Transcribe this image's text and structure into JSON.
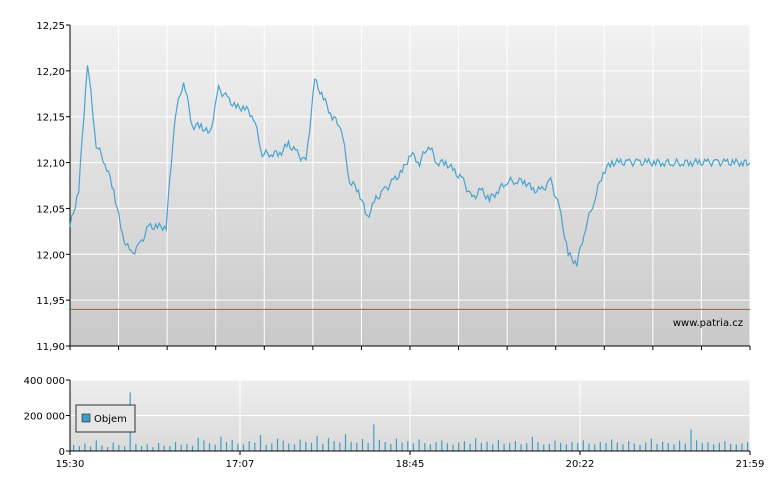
{
  "colors": {
    "price_line": "#4aa3cf",
    "volume_bars": "#3d9dc9",
    "reference_line": "#e03a3a",
    "plot_bg_top": "#f2f2f2",
    "plot_bg_bottom": "#c9c9c9",
    "grid": "#ffffff"
  },
  "watermark": "www.patria.cz",
  "chart_data": [
    {
      "type": "line",
      "name_hidden": true,
      "ylim": [
        11.9,
        12.25
      ],
      "y_ticks": [
        "12,25",
        "12,20",
        "12,15",
        "12,10",
        "12,05",
        "12,00",
        "11,95",
        "11,90"
      ],
      "y_tick_values": [
        12.25,
        12.2,
        12.15,
        12.1,
        12.05,
        12.0,
        11.95,
        11.9
      ],
      "x_range": [
        "15:30",
        "21:59"
      ],
      "reference_line": 11.94,
      "grid": true,
      "series": [
        {
          "x": [
            "15:30",
            "15:35",
            "15:40",
            "15:45",
            "15:50",
            "15:55",
            "16:00",
            "16:05",
            "16:10",
            "16:15",
            "16:20",
            "16:25",
            "16:30",
            "16:35",
            "16:40",
            "16:45",
            "16:50",
            "16:55",
            "17:00",
            "17:05",
            "17:10",
            "17:15",
            "17:20",
            "17:25",
            "17:30",
            "17:35",
            "17:40",
            "17:45",
            "17:50",
            "17:55",
            "18:00",
            "18:05",
            "18:10",
            "18:15",
            "18:20",
            "18:25",
            "18:30",
            "18:35",
            "18:40",
            "18:45",
            "18:50",
            "18:55",
            "19:00",
            "19:05",
            "19:10",
            "19:15",
            "19:20",
            "19:25",
            "19:30",
            "19:35",
            "19:40",
            "19:45",
            "19:50",
            "19:55",
            "20:00",
            "20:05",
            "20:10",
            "20:15",
            "20:20",
            "20:25",
            "20:30",
            "20:35",
            "20:40",
            "20:45",
            "20:50",
            "20:55",
            "21:00",
            "21:05",
            "21:10",
            "21:15",
            "21:20",
            "21:25",
            "21:30",
            "21:35",
            "21:40",
            "21:45",
            "21:50",
            "21:55",
            "21:59"
          ],
          "values": [
            12.03,
            12.07,
            12.21,
            12.12,
            12.1,
            12.07,
            12.02,
            12.0,
            12.01,
            12.03,
            12.03,
            12.03,
            12.15,
            12.19,
            12.14,
            12.14,
            12.13,
            12.18,
            12.17,
            12.16,
            12.16,
            12.15,
            12.11,
            12.11,
            12.11,
            12.12,
            12.11,
            12.1,
            12.19,
            12.17,
            12.15,
            12.14,
            12.08,
            12.07,
            12.04,
            12.06,
            12.07,
            12.08,
            12.09,
            12.11,
            12.1,
            12.12,
            12.1,
            12.1,
            12.09,
            12.08,
            12.06,
            12.07,
            12.06,
            12.07,
            12.08,
            12.08,
            12.08,
            12.07,
            12.07,
            12.08,
            12.05,
            12.0,
            11.99,
            12.03,
            12.06,
            12.09,
            12.1,
            12.1,
            12.1,
            12.1,
            12.1,
            12.1,
            12.1,
            12.1,
            12.1,
            12.1,
            12.1,
            12.1,
            12.1,
            12.1,
            12.1,
            12.1,
            12.1
          ]
        }
      ]
    },
    {
      "type": "bar",
      "ylim": [
        0,
        400000
      ],
      "y_ticks": [
        "400 000",
        "200 000",
        "0"
      ],
      "y_tick_values": [
        400000,
        200000,
        0
      ],
      "x_ticks": [
        "15:30",
        "17:07",
        "18:45",
        "20:22",
        "21:59"
      ],
      "legend": {
        "position": "top-left",
        "entries": [
          "Objem"
        ]
      },
      "grid": true,
      "series": [
        {
          "name": "Objem",
          "values": [
            35000,
            28000,
            42000,
            25000,
            60000,
            31000,
            22000,
            48000,
            33000,
            26000,
            330000,
            40000,
            27000,
            38000,
            22000,
            45000,
            30000,
            28000,
            52000,
            35000,
            40000,
            29000,
            75000,
            60000,
            44000,
            36000,
            80000,
            50000,
            62000,
            41000,
            38000,
            55000,
            47000,
            90000,
            35000,
            42000,
            70000,
            58000,
            43000,
            38000,
            65000,
            52000,
            46000,
            85000,
            40000,
            72000,
            55000,
            48000,
            95000,
            52000,
            47000,
            68000,
            45000,
            150000,
            62000,
            50000,
            40000,
            70000,
            48000,
            55000,
            42000,
            66000,
            45000,
            38000,
            50000,
            60000,
            44000,
            35000,
            48000,
            56000,
            40000,
            72000,
            45000,
            52000,
            38000,
            62000,
            41000,
            47000,
            56000,
            39000,
            44000,
            80000,
            50000,
            36000,
            40000,
            58000,
            46000,
            38000,
            52000,
            45000,
            60000,
            42000,
            37000,
            50000,
            44000,
            65000,
            48000,
            38000,
            56000,
            41000,
            35000,
            48000,
            70000,
            40000,
            52000,
            45000,
            38000,
            58000,
            42000,
            120000,
            60000,
            44000,
            50000,
            38000,
            46000,
            55000,
            40000,
            36000,
            42000,
            50000
          ]
        }
      ]
    }
  ]
}
